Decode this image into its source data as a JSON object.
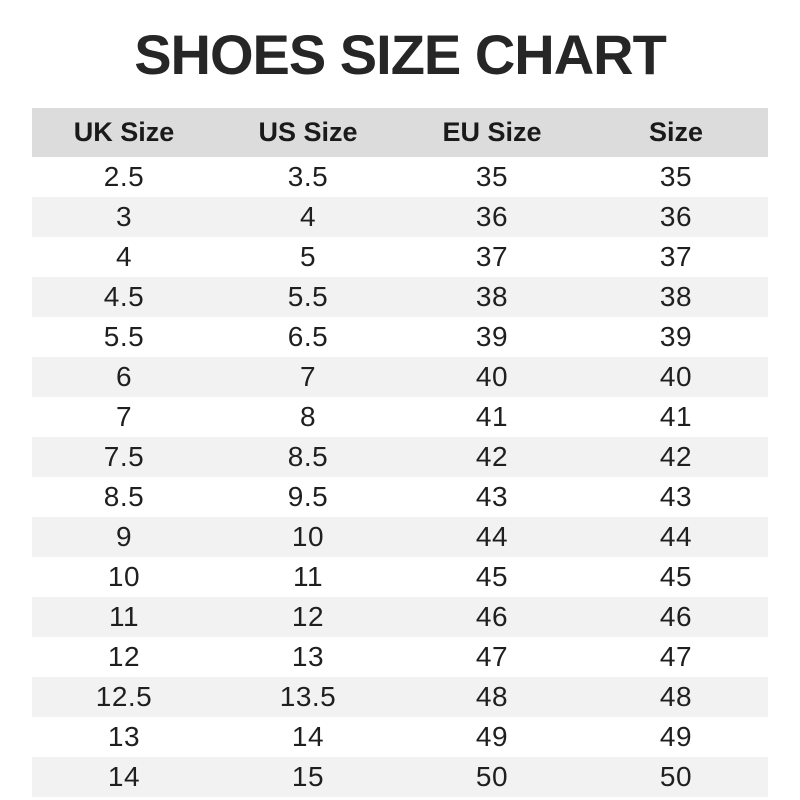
{
  "title": "SHOES SIZE CHART",
  "colors": {
    "background": "#ffffff",
    "title_text": "#262626",
    "header_bg": "#dcdcdc",
    "stripe_bg": "#f2f2f2",
    "body_text": "#1f1f1f"
  },
  "chart_data": {
    "type": "table",
    "title": "SHOES SIZE CHART",
    "columns": [
      "UK Size",
      "US Size",
      "EU Size",
      "Size"
    ],
    "rows": [
      [
        "2.5",
        "3.5",
        "35",
        "35"
      ],
      [
        "3",
        "4",
        "36",
        "36"
      ],
      [
        "4",
        "5",
        "37",
        "37"
      ],
      [
        "4.5",
        "5.5",
        "38",
        "38"
      ],
      [
        "5.5",
        "6.5",
        "39",
        "39"
      ],
      [
        "6",
        "7",
        "40",
        "40"
      ],
      [
        "7",
        "8",
        "41",
        "41"
      ],
      [
        "7.5",
        "8.5",
        "42",
        "42"
      ],
      [
        "8.5",
        "9.5",
        "43",
        "43"
      ],
      [
        "9",
        "10",
        "44",
        "44"
      ],
      [
        "10",
        "11",
        "45",
        "45"
      ],
      [
        "11",
        "12",
        "46",
        "46"
      ],
      [
        "12",
        "13",
        "47",
        "47"
      ],
      [
        "12.5",
        "13.5",
        "48",
        "48"
      ],
      [
        "13",
        "14",
        "49",
        "49"
      ],
      [
        "14",
        "15",
        "50",
        "50"
      ]
    ],
    "layout": {
      "columns_equal_width": true,
      "header_background": "#dcdcdc",
      "alternating_row_background": "#f2f2f2",
      "text_alignment": "center"
    }
  }
}
